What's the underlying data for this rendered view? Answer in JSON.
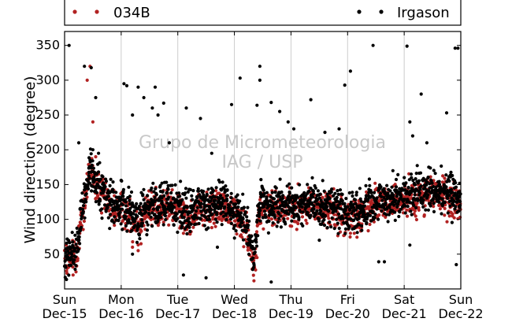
{
  "chart_data": {
    "type": "scatter",
    "ylabel": "Wind direction (degree)",
    "ylim": [
      0,
      370
    ],
    "yticks": [
      50,
      100,
      150,
      200,
      250,
      300,
      350
    ],
    "xlim": [
      "Dec-15",
      "Dec-22"
    ],
    "x_ticks": [
      {
        "day": "Sun",
        "date": "Dec-15"
      },
      {
        "day": "Mon",
        "date": "Dec-16"
      },
      {
        "day": "Tue",
        "date": "Dec-17"
      },
      {
        "day": "Wed",
        "date": "Dec-18"
      },
      {
        "day": "Thu",
        "date": "Dec-19"
      },
      {
        "day": "Fri",
        "date": "Dec-20"
      },
      {
        "day": "Sat",
        "date": "Dec-21"
      },
      {
        "day": "Sun",
        "date": "Dec-22"
      }
    ],
    "grid": "vertical",
    "legend_position": "top",
    "watermark": [
      "Grupo de Micrometeorologia",
      "IAG / USP"
    ],
    "series": [
      {
        "name": "034B",
        "color": "#b22222",
        "trend": [
          [
            0.0,
            40
          ],
          [
            0.2,
            45
          ],
          [
            0.35,
            120
          ],
          [
            0.45,
            170
          ],
          [
            0.55,
            145
          ],
          [
            0.8,
            120
          ],
          [
            1.0,
            115
          ],
          [
            1.3,
            95
          ],
          [
            1.5,
            115
          ],
          [
            2.0,
            118
          ],
          [
            2.15,
            108
          ],
          [
            2.4,
            112
          ],
          [
            2.8,
            118
          ],
          [
            3.0,
            108
          ],
          [
            3.2,
            90
          ],
          [
            3.35,
            40
          ],
          [
            3.45,
            115
          ],
          [
            4.0,
            118
          ],
          [
            4.5,
            115
          ],
          [
            4.8,
            112
          ],
          [
            5.0,
            98
          ],
          [
            5.5,
            120
          ],
          [
            6.0,
            128
          ],
          [
            6.5,
            138
          ],
          [
            7.0,
            122
          ]
        ],
        "points": [
          [
            0.05,
            30
          ],
          [
            0.1,
            52
          ],
          [
            0.15,
            20
          ],
          [
            0.25,
            90
          ],
          [
            0.3,
            110
          ],
          [
            0.4,
            300
          ],
          [
            0.45,
            320
          ],
          [
            0.5,
            240
          ],
          [
            0.55,
            190
          ],
          [
            0.6,
            165
          ],
          [
            1.2,
            60
          ],
          [
            1.3,
            55
          ],
          [
            1.35,
            65
          ],
          [
            2.05,
            90
          ],
          [
            2.1,
            80
          ],
          [
            2.3,
            100
          ],
          [
            3.3,
            60
          ],
          [
            3.35,
            30
          ],
          [
            3.4,
            45
          ],
          [
            4.2,
            110
          ],
          [
            5.05,
            80
          ],
          [
            5.2,
            95
          ],
          [
            5.9,
            120
          ],
          [
            6.3,
            140
          ],
          [
            6.8,
            140
          ]
        ]
      },
      {
        "name": "Irgason",
        "color": "#000000",
        "trend": [
          [
            0.0,
            40
          ],
          [
            0.2,
            50
          ],
          [
            0.35,
            125
          ],
          [
            0.45,
            175
          ],
          [
            0.55,
            150
          ],
          [
            0.8,
            125
          ],
          [
            1.0,
            118
          ],
          [
            1.3,
            100
          ],
          [
            1.5,
            120
          ],
          [
            2.0,
            122
          ],
          [
            2.15,
            112
          ],
          [
            2.4,
            118
          ],
          [
            2.8,
            125
          ],
          [
            3.0,
            112
          ],
          [
            3.2,
            95
          ],
          [
            3.35,
            45
          ],
          [
            3.45,
            120
          ],
          [
            4.0,
            122
          ],
          [
            4.5,
            120
          ],
          [
            4.8,
            118
          ],
          [
            5.0,
            105
          ],
          [
            5.5,
            125
          ],
          [
            6.0,
            135
          ],
          [
            6.5,
            145
          ],
          [
            7.0,
            130
          ]
        ],
        "points": [
          [
            0.08,
            350
          ],
          [
            0.35,
            320
          ],
          [
            0.47,
            318
          ],
          [
            0.55,
            275
          ],
          [
            0.25,
            210
          ],
          [
            0.6,
            195
          ],
          [
            0.5,
            200
          ],
          [
            0.45,
            185
          ],
          [
            1.05,
            295
          ],
          [
            1.1,
            292
          ],
          [
            1.2,
            250
          ],
          [
            1.3,
            290
          ],
          [
            1.4,
            275
          ],
          [
            1.55,
            260
          ],
          [
            1.6,
            290
          ],
          [
            1.65,
            250
          ],
          [
            1.75,
            267
          ],
          [
            1.85,
            210
          ],
          [
            2.15,
            260
          ],
          [
            2.4,
            245
          ],
          [
            2.6,
            195
          ],
          [
            2.7,
            60
          ],
          [
            2.5,
            16
          ],
          [
            2.95,
            265
          ],
          [
            3.1,
            303
          ],
          [
            3.4,
            264
          ],
          [
            3.45,
            320
          ],
          [
            3.45,
            300
          ],
          [
            3.65,
            268
          ],
          [
            3.8,
            255
          ],
          [
            3.95,
            240
          ],
          [
            4.05,
            230
          ],
          [
            4.35,
            272
          ],
          [
            4.6,
            225
          ],
          [
            4.85,
            230
          ],
          [
            4.95,
            293
          ],
          [
            5.05,
            313
          ],
          [
            5.45,
            350
          ],
          [
            5.55,
            39
          ],
          [
            5.65,
            39
          ],
          [
            6.05,
            349
          ],
          [
            6.1,
            240
          ],
          [
            6.15,
            220
          ],
          [
            6.3,
            280
          ],
          [
            6.4,
            210
          ],
          [
            6.75,
            253
          ],
          [
            6.9,
            346
          ],
          [
            6.95,
            346
          ],
          [
            6.92,
            35
          ],
          [
            6.1,
            63
          ],
          [
            5.8,
            170
          ],
          [
            4.5,
            70
          ],
          [
            3.65,
            10
          ],
          [
            2.1,
            20
          ],
          [
            1.2,
            50
          ],
          [
            1.1,
            110
          ]
        ]
      }
    ]
  }
}
